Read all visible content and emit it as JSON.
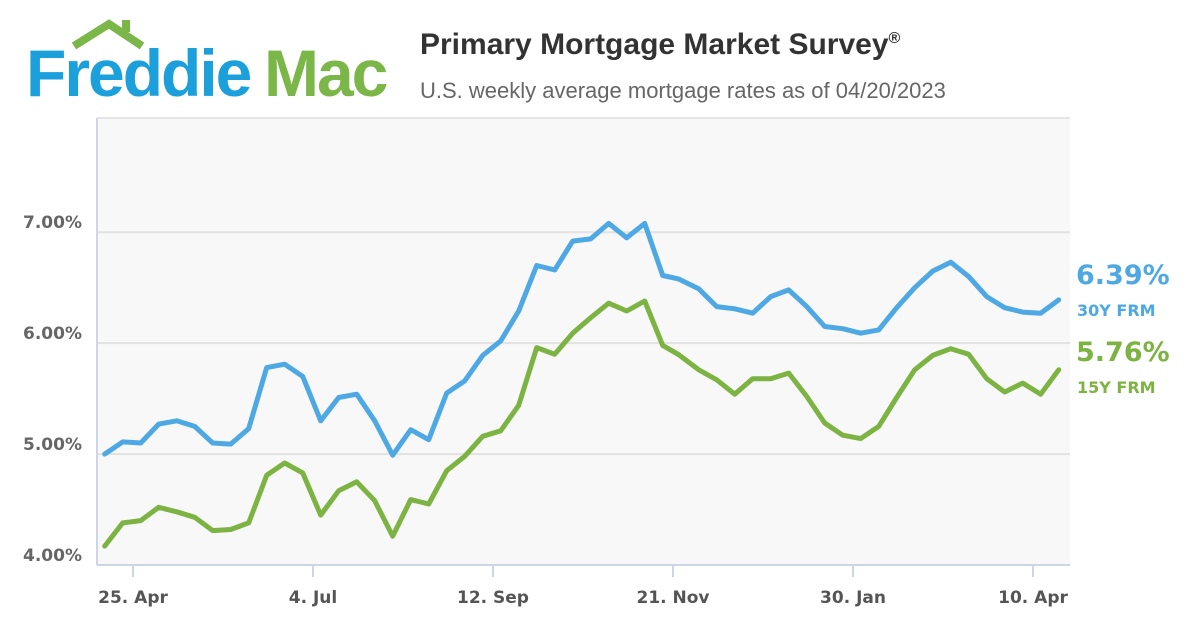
{
  "logo": {
    "part1": "Freddie",
    "part2": "Mac",
    "colors": {
      "blue": "#1ba0dc",
      "green": "#7ab648"
    }
  },
  "chart_data": {
    "type": "line",
    "title": "Primary Mortgage Market Survey",
    "title_mark": "®",
    "subtitle": "U.S. weekly average mortgage rates as of 04/20/2023",
    "ylim": [
      4.0,
      8.03
    ],
    "yticks": [
      {
        "value": 4,
        "label": "4.00%"
      },
      {
        "value": 5,
        "label": "5.00%"
      },
      {
        "value": 6,
        "label": "6.00%"
      },
      {
        "value": 7,
        "label": "7.00%"
      }
    ],
    "xticks": [
      {
        "date": "2022-04-25",
        "label": "25. Apr"
      },
      {
        "date": "2022-07-04",
        "label": "4. Jul"
      },
      {
        "date": "2022-09-12",
        "label": "12. Sep"
      },
      {
        "date": "2022-11-21",
        "label": "21. Nov"
      },
      {
        "date": "2023-01-30",
        "label": "30. Jan"
      },
      {
        "date": "2023-04-10",
        "label": "10. Apr"
      }
    ],
    "grid": true,
    "x": [
      "2022-04-14",
      "2022-04-21",
      "2022-04-28",
      "2022-05-05",
      "2022-05-12",
      "2022-05-19",
      "2022-05-26",
      "2022-06-02",
      "2022-06-09",
      "2022-06-16",
      "2022-06-23",
      "2022-06-30",
      "2022-07-07",
      "2022-07-14",
      "2022-07-21",
      "2022-07-28",
      "2022-08-04",
      "2022-08-11",
      "2022-08-18",
      "2022-08-25",
      "2022-09-01",
      "2022-09-08",
      "2022-09-15",
      "2022-09-22",
      "2022-09-29",
      "2022-10-06",
      "2022-10-13",
      "2022-10-20",
      "2022-10-27",
      "2022-11-03",
      "2022-11-10",
      "2022-11-17",
      "2022-11-23",
      "2022-12-01",
      "2022-12-08",
      "2022-12-15",
      "2022-12-22",
      "2022-12-29",
      "2023-01-05",
      "2023-01-12",
      "2023-01-19",
      "2023-01-26",
      "2023-02-02",
      "2023-02-09",
      "2023-02-16",
      "2023-02-23",
      "2023-03-02",
      "2023-03-09",
      "2023-03-16",
      "2023-03-23",
      "2023-03-30",
      "2023-04-06",
      "2023-04-13",
      "2023-04-20"
    ],
    "series": [
      {
        "name": "30Y FRM",
        "last_label": "6.39%",
        "color": "#4ea8e4",
        "values": [
          5.0,
          5.11,
          5.1,
          5.27,
          5.3,
          5.25,
          5.1,
          5.09,
          5.23,
          5.78,
          5.81,
          5.7,
          5.3,
          5.51,
          5.54,
          5.3,
          4.99,
          5.22,
          5.13,
          5.55,
          5.66,
          5.89,
          6.02,
          6.29,
          6.7,
          6.66,
          6.92,
          6.94,
          7.08,
          6.95,
          7.08,
          6.61,
          6.58,
          6.49,
          6.33,
          6.31,
          6.27,
          6.42,
          6.48,
          6.33,
          6.15,
          6.13,
          6.09,
          6.12,
          6.32,
          6.5,
          6.65,
          6.73,
          6.6,
          6.42,
          6.32,
          6.28,
          6.27,
          6.39
        ]
      },
      {
        "name": "15Y FRM",
        "last_label": "5.76%",
        "color": "#7cb342",
        "values": [
          4.17,
          4.38,
          4.4,
          4.52,
          4.48,
          4.43,
          4.31,
          4.32,
          4.38,
          4.81,
          4.92,
          4.83,
          4.45,
          4.67,
          4.75,
          4.58,
          4.26,
          4.59,
          4.55,
          4.85,
          4.98,
          5.16,
          5.21,
          5.44,
          5.96,
          5.9,
          6.09,
          6.23,
          6.36,
          6.29,
          6.38,
          5.98,
          5.9,
          5.76,
          5.67,
          5.54,
          5.68,
          5.68,
          5.73,
          5.52,
          5.28,
          5.17,
          5.14,
          5.25,
          5.51,
          5.76,
          5.89,
          5.95,
          5.9,
          5.68,
          5.56,
          5.64,
          5.54,
          5.76
        ]
      }
    ]
  }
}
